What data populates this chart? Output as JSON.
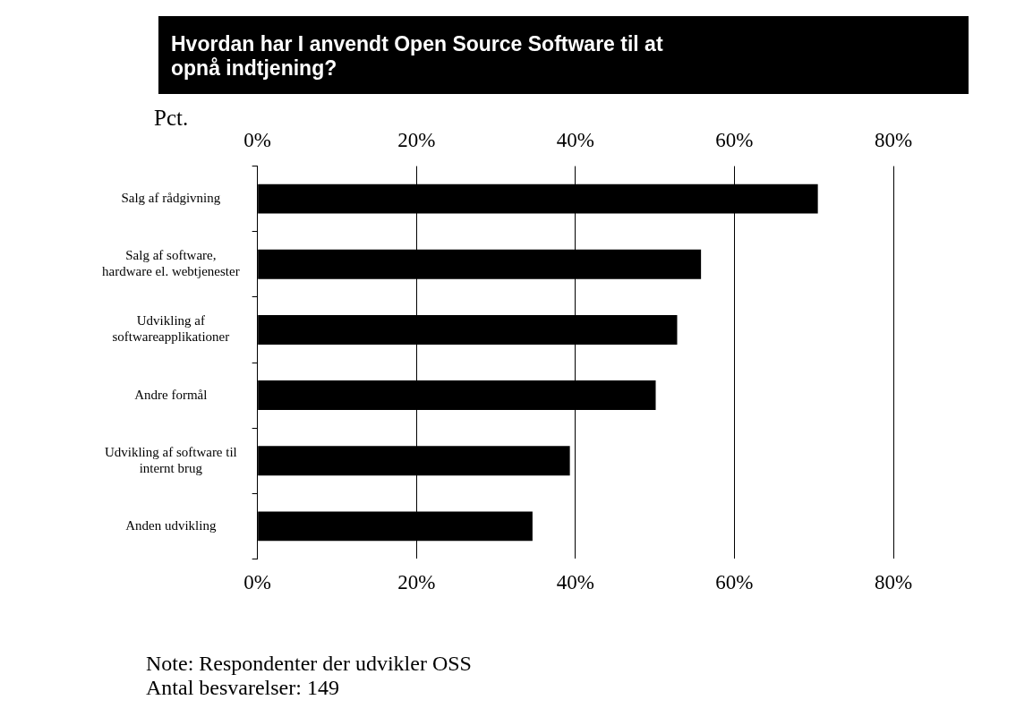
{
  "chart_data": {
    "type": "bar",
    "orientation": "horizontal",
    "title": "Hvordan har I anvendt Open Source Software til at opnå indtjening?",
    "x2label": "Pct.",
    "categories": [
      "Salg af rådgivning",
      "Salg af software,\nhardware el. webtjenester",
      "Udvikling af\nsoftwareapplikationer",
      "Andre formål",
      "Udvikling af software til\ninternt brug",
      "Anden udvikling"
    ],
    "values": [
      70.5,
      55.8,
      52.8,
      50.1,
      39.3,
      34.6
    ],
    "color": "#000000",
    "xlim": [
      0,
      80
    ],
    "xticks": [
      {
        "value": 0,
        "label": "0%"
      },
      {
        "value": 20,
        "label": "20%"
      },
      {
        "value": 40,
        "label": "40%"
      },
      {
        "value": 60,
        "label": "60%"
      },
      {
        "value": 80,
        "label": "80%"
      }
    ],
    "x2lim": [
      0,
      80
    ],
    "x2ticks": [
      {
        "value": 0,
        "label": "0%"
      },
      {
        "value": 20,
        "label": "20%"
      },
      {
        "value": 40,
        "label": "40%"
      },
      {
        "value": 60,
        "label": "60%"
      },
      {
        "value": 80,
        "label": "80%"
      }
    ],
    "grid": "x",
    "legend": false,
    "annotations": [
      "Note: Respondenter der udvikler OSS",
      "Antal besvarelser: 149"
    ]
  }
}
